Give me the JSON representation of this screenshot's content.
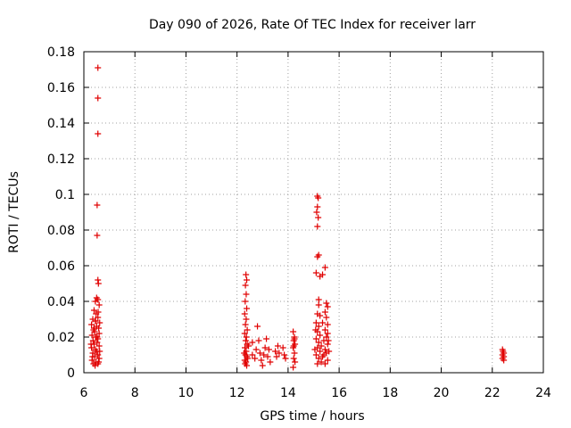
{
  "chart_data": {
    "type": "scatter",
    "title": "Day 090 of 2026, Rate Of TEC Index for receiver larr",
    "xlabel": "GPS time / hours",
    "ylabel": "ROTI / TECUs",
    "xlim": [
      6,
      24
    ],
    "ylim": [
      0,
      0.18
    ],
    "x_ticks": [
      6,
      8,
      10,
      12,
      14,
      16,
      18,
      20,
      22,
      24
    ],
    "y_ticks": [
      0,
      0.02,
      0.04,
      0.06,
      0.08,
      0.1,
      0.12,
      0.14,
      0.16,
      0.18
    ],
    "x_tick_labels": [
      "6",
      "8",
      "10",
      "12",
      "14",
      "16",
      "18",
      "20",
      "22",
      "24"
    ],
    "y_tick_labels": [
      "0",
      "0.02",
      "0.04",
      "0.06",
      "0.08",
      "0.1",
      "0.12",
      "0.14",
      "0.16",
      "0.18"
    ],
    "grid": true,
    "marker": "+",
    "series_color": "#e00000",
    "points": [
      [
        6.55,
        0.171
      ],
      [
        6.55,
        0.154
      ],
      [
        6.55,
        0.134
      ],
      [
        6.52,
        0.094
      ],
      [
        6.52,
        0.077
      ],
      [
        6.55,
        0.052
      ],
      [
        6.57,
        0.05
      ],
      [
        6.5,
        0.042
      ],
      [
        6.55,
        0.041
      ],
      [
        6.45,
        0.04
      ],
      [
        6.6,
        0.038
      ],
      [
        6.4,
        0.035
      ],
      [
        6.48,
        0.033
      ],
      [
        6.55,
        0.031
      ],
      [
        6.35,
        0.03
      ],
      [
        6.45,
        0.029
      ],
      [
        6.62,
        0.028
      ],
      [
        6.3,
        0.027
      ],
      [
        6.5,
        0.026
      ],
      [
        6.58,
        0.025
      ],
      [
        6.38,
        0.024
      ],
      [
        6.42,
        0.023
      ],
      [
        6.6,
        0.022
      ],
      [
        6.32,
        0.021
      ],
      [
        6.47,
        0.02
      ],
      [
        6.55,
        0.019
      ],
      [
        6.36,
        0.018
      ],
      [
        6.52,
        0.017
      ],
      [
        6.4,
        0.016
      ],
      [
        6.6,
        0.015
      ],
      [
        6.3,
        0.014
      ],
      [
        6.45,
        0.013
      ],
      [
        6.5,
        0.012
      ],
      [
        6.35,
        0.011
      ],
      [
        6.55,
        0.01
      ],
      [
        6.42,
        0.009
      ],
      [
        6.6,
        0.008
      ],
      [
        6.32,
        0.007
      ],
      [
        6.48,
        0.006
      ],
      [
        6.55,
        0.005
      ],
      [
        6.38,
        0.005
      ],
      [
        6.44,
        0.004
      ],
      [
        6.58,
        0.006
      ],
      [
        6.34,
        0.009
      ],
      [
        6.62,
        0.012
      ],
      [
        6.28,
        0.016
      ],
      [
        6.52,
        0.02
      ],
      [
        6.4,
        0.025
      ],
      [
        6.46,
        0.029
      ],
      [
        6.56,
        0.034
      ],
      [
        12.35,
        0.055
      ],
      [
        12.38,
        0.052
      ],
      [
        12.33,
        0.049
      ],
      [
        12.36,
        0.044
      ],
      [
        12.32,
        0.04
      ],
      [
        12.38,
        0.036
      ],
      [
        12.3,
        0.033
      ],
      [
        12.36,
        0.03
      ],
      [
        12.33,
        0.027
      ],
      [
        12.4,
        0.024
      ],
      [
        12.3,
        0.022
      ],
      [
        12.37,
        0.02
      ],
      [
        12.34,
        0.018
      ],
      [
        12.4,
        0.016
      ],
      [
        12.31,
        0.014
      ],
      [
        12.36,
        0.012
      ],
      [
        12.33,
        0.01
      ],
      [
        12.39,
        0.009
      ],
      [
        12.3,
        0.007
      ],
      [
        12.35,
        0.006
      ],
      [
        12.38,
        0.004
      ],
      [
        12.32,
        0.005
      ],
      [
        12.42,
        0.008
      ],
      [
        12.28,
        0.011
      ],
      [
        12.45,
        0.015
      ],
      [
        12.6,
        0.017
      ],
      [
        12.6,
        0.01
      ],
      [
        12.7,
        0.008
      ],
      [
        12.75,
        0.013
      ],
      [
        12.8,
        0.026
      ],
      [
        12.85,
        0.018
      ],
      [
        12.9,
        0.011
      ],
      [
        12.95,
        0.007
      ],
      [
        13.0,
        0.004
      ],
      [
        13.05,
        0.01
      ],
      [
        13.1,
        0.014
      ],
      [
        13.15,
        0.019
      ],
      [
        13.2,
        0.009
      ],
      [
        13.25,
        0.013
      ],
      [
        13.3,
        0.006
      ],
      [
        13.5,
        0.012
      ],
      [
        13.55,
        0.009
      ],
      [
        13.6,
        0.015
      ],
      [
        13.65,
        0.011
      ],
      [
        13.8,
        0.014
      ],
      [
        13.85,
        0.01
      ],
      [
        13.9,
        0.008
      ],
      [
        14.2,
        0.023
      ],
      [
        14.25,
        0.02
      ],
      [
        14.22,
        0.018
      ],
      [
        14.27,
        0.016
      ],
      [
        14.2,
        0.014
      ],
      [
        14.25,
        0.011
      ],
      [
        14.22,
        0.008
      ],
      [
        14.27,
        0.006
      ],
      [
        14.2,
        0.003
      ],
      [
        14.25,
        0.019
      ],
      [
        14.22,
        0.015
      ],
      [
        15.15,
        0.099
      ],
      [
        15.18,
        0.098
      ],
      [
        15.15,
        0.093
      ],
      [
        15.12,
        0.09
      ],
      [
        15.18,
        0.087
      ],
      [
        15.15,
        0.082
      ],
      [
        15.2,
        0.066
      ],
      [
        15.15,
        0.065
      ],
      [
        15.1,
        0.056
      ],
      [
        15.25,
        0.054
      ],
      [
        15.45,
        0.059
      ],
      [
        15.35,
        0.055
      ],
      [
        15.2,
        0.041
      ],
      [
        15.2,
        0.038
      ],
      [
        15.5,
        0.039
      ],
      [
        15.55,
        0.037
      ],
      [
        15.45,
        0.034
      ],
      [
        15.15,
        0.033
      ],
      [
        15.5,
        0.031
      ],
      [
        15.1,
        0.028
      ],
      [
        15.55,
        0.027
      ],
      [
        15.2,
        0.026
      ],
      [
        15.45,
        0.024
      ],
      [
        15.15,
        0.023
      ],
      [
        15.55,
        0.022
      ],
      [
        15.25,
        0.021
      ],
      [
        15.5,
        0.02
      ],
      [
        15.1,
        0.019
      ],
      [
        15.4,
        0.018
      ],
      [
        15.2,
        0.017
      ],
      [
        15.55,
        0.016
      ],
      [
        15.3,
        0.015
      ],
      [
        15.15,
        0.014
      ],
      [
        15.45,
        0.013
      ],
      [
        15.25,
        0.012
      ],
      [
        15.5,
        0.011
      ],
      [
        15.1,
        0.01
      ],
      [
        15.35,
        0.009
      ],
      [
        15.2,
        0.008
      ],
      [
        15.55,
        0.007
      ],
      [
        15.3,
        0.006
      ],
      [
        15.15,
        0.005
      ],
      [
        15.45,
        0.005
      ],
      [
        15.4,
        0.01
      ],
      [
        15.05,
        0.013
      ],
      [
        15.6,
        0.012
      ],
      [
        15.58,
        0.018
      ],
      [
        15.08,
        0.024
      ],
      [
        15.35,
        0.028
      ],
      [
        15.25,
        0.032
      ],
      [
        22.4,
        0.013
      ],
      [
        22.45,
        0.011
      ],
      [
        22.4,
        0.01
      ],
      [
        22.45,
        0.009
      ],
      [
        22.4,
        0.008
      ],
      [
        22.45,
        0.007
      ],
      [
        22.42,
        0.012
      ]
    ]
  }
}
